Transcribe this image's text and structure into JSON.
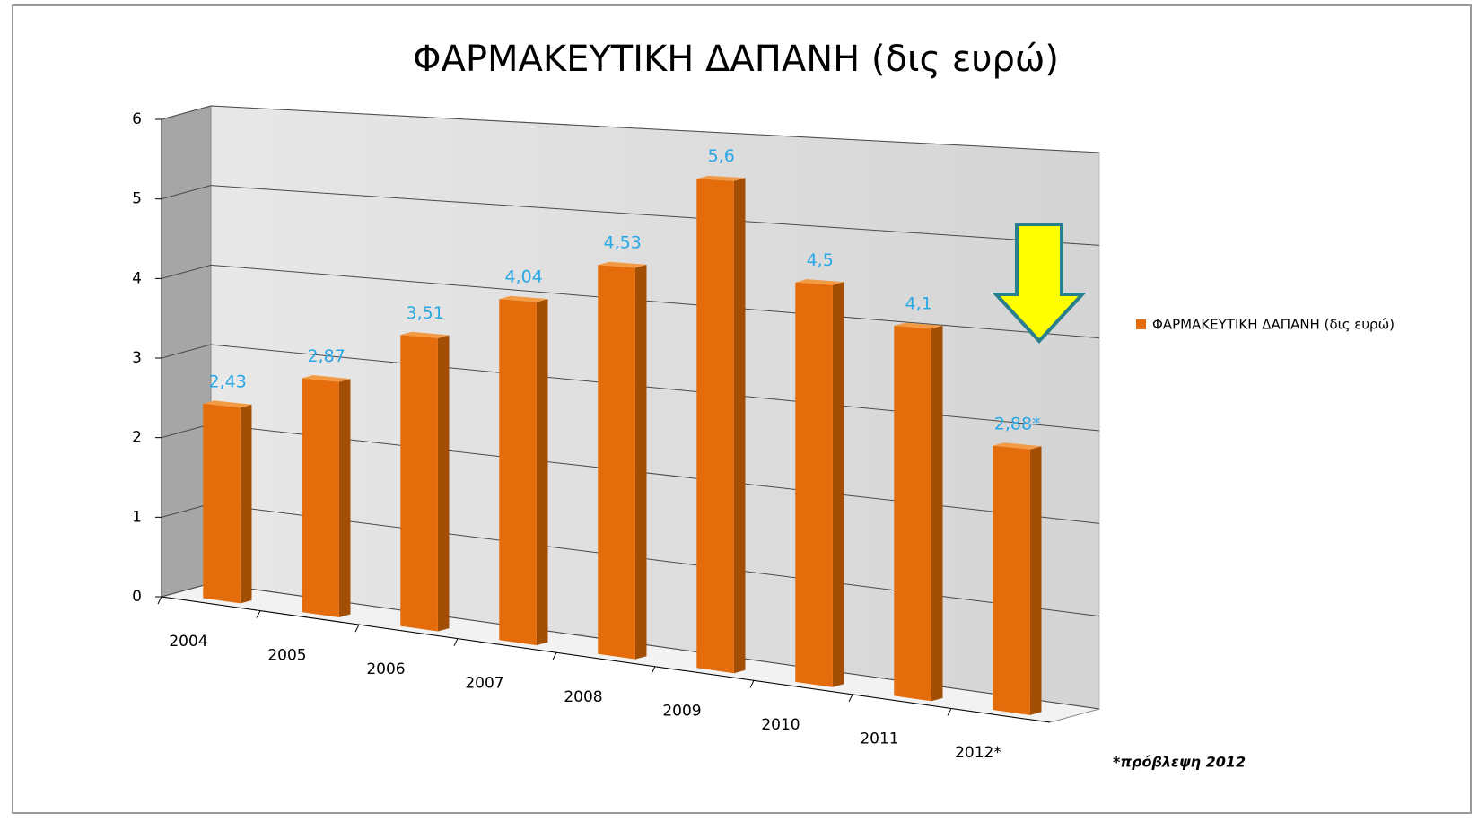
{
  "chart_data": {
    "type": "bar3d",
    "title": "ΦΑΡΜΑΚΕΥΤΙΚΗ ΔΑΠΑΝΗ (δις ευρώ)",
    "categories": [
      "2004",
      "2005",
      "2006",
      "2007",
      "2008",
      "2009",
      "2010",
      "2011",
      "2012*"
    ],
    "series": [
      {
        "name": "ΦΑΡΜΑΚΕΥΤΙΚΗ ΔΑΠΑΝΗ (δις ευρώ)",
        "color": "#e46c0a",
        "values": [
          2.43,
          2.87,
          3.51,
          4.04,
          4.53,
          5.6,
          4.5,
          4.1,
          2.88
        ],
        "value_labels": [
          "2,43",
          "2,87",
          "3,51",
          "4,04",
          "4,53",
          "5,6",
          "4,5",
          "4,1",
          "2,88*"
        ]
      }
    ],
    "ylim": [
      0,
      6
    ],
    "yticks": [
      0,
      1,
      2,
      3,
      4,
      5,
      6
    ],
    "grid": true,
    "legend": "right",
    "annotation": "*πρόβλεψη 2012"
  }
}
